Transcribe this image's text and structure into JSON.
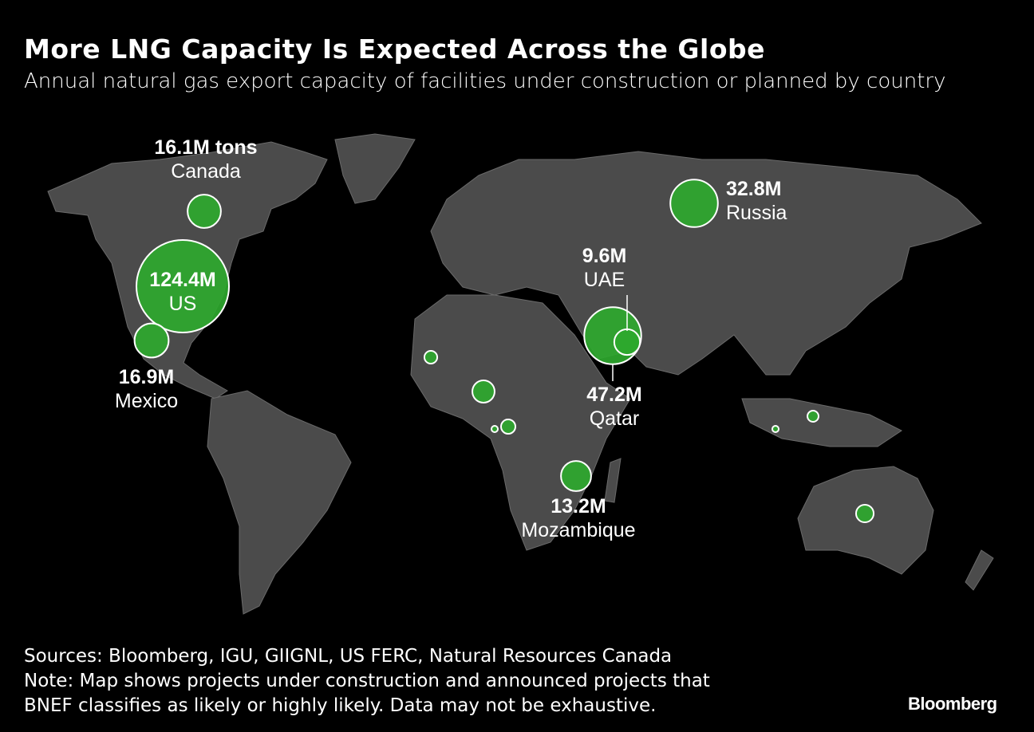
{
  "title": "More LNG Capacity Is Expected Across the Globe",
  "subtitle": "Annual natural gas export capacity of facilities under construction or planned by country",
  "colors": {
    "background": "#000000",
    "land": "#4b4b4b",
    "bubble": "#2ea82e",
    "bubble_stroke": "#ffffff",
    "border": "#6a6a6a"
  },
  "chart_data": {
    "type": "bubble-map",
    "unit": "million tons per year",
    "bubbles": [
      {
        "id": "us",
        "country": "US",
        "value": 124.4,
        "label": "124.4M"
      },
      {
        "id": "qatar",
        "country": "Qatar",
        "value": 47.2,
        "label": "47.2M"
      },
      {
        "id": "russia",
        "country": "Russia",
        "value": 32.8,
        "label": "32.8M"
      },
      {
        "id": "mexico",
        "country": "Mexico",
        "value": 16.9,
        "label": "16.9M"
      },
      {
        "id": "canada",
        "country": "Canada",
        "value": 16.1,
        "label": "16.1M tons"
      },
      {
        "id": "mozambique",
        "country": "Mozambique",
        "value": 13.2,
        "label": "13.2M"
      },
      {
        "id": "uae",
        "country": "UAE",
        "value": 9.6,
        "label": "9.6M"
      },
      {
        "id": "nigeria",
        "value": 7.2
      },
      {
        "id": "australia",
        "value": 4.5
      },
      {
        "id": "cameroon",
        "value": 3.0
      },
      {
        "id": "mauritania-senegal",
        "value": 2.4
      },
      {
        "id": "malaysia",
        "value": 1.8
      },
      {
        "id": "eq-guinea",
        "value": 0.6
      },
      {
        "id": "indonesia",
        "value": 0.6
      }
    ]
  },
  "footer": {
    "sources": "Sources: Bloomberg, IGU, GIIGNL, US FERC, Natural Resources Canada",
    "note_line1": "Note: Map shows projects under construction and announced projects that",
    "note_line2": "BNEF classifies as likely or highly likely. Data may not be exhaustive."
  },
  "brand": "Bloomberg"
}
